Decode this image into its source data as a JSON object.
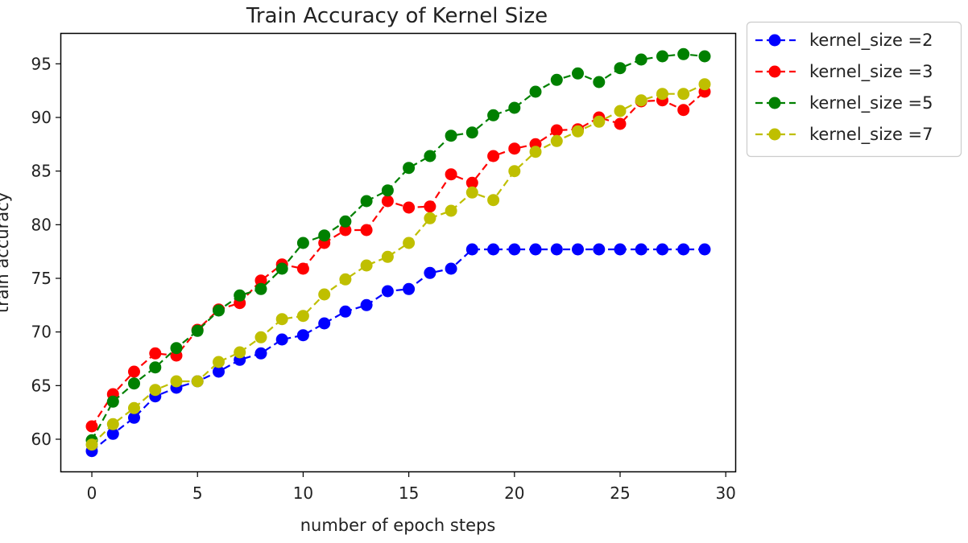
{
  "chart_data": {
    "type": "line",
    "title": "Train Accuracy of Kernel Size",
    "xlabel": "number of epoch steps",
    "ylabel": "train accuracy",
    "xlim": [
      -1.45,
      30.45
    ],
    "ylim": [
      57.0,
      97.8
    ],
    "xticks": [
      0,
      5,
      10,
      15,
      20,
      25,
      30
    ],
    "yticks": [
      60,
      65,
      70,
      75,
      80,
      85,
      90,
      95
    ],
    "grid": false,
    "legend_position": "outside-top-right",
    "x": [
      0,
      1,
      2,
      3,
      4,
      5,
      6,
      7,
      8,
      9,
      10,
      11,
      12,
      13,
      14,
      15,
      16,
      17,
      18,
      19,
      20,
      21,
      22,
      23,
      24,
      25,
      26,
      27,
      28,
      29
    ],
    "series": [
      {
        "name": "kernel_size =2",
        "color": "#0000ff",
        "values": [
          58.9,
          60.5,
          62.0,
          64.0,
          64.8,
          65.4,
          66.3,
          67.4,
          68.0,
          69.3,
          69.7,
          70.8,
          71.9,
          72.5,
          73.8,
          74.0,
          75.5,
          75.9,
          77.7,
          77.7,
          77.7,
          77.7,
          77.7,
          77.7,
          77.7,
          77.7,
          77.7,
          77.7,
          77.7,
          77.7
        ]
      },
      {
        "name": "kernel_size =3",
        "color": "#ff0000",
        "values": [
          61.2,
          64.2,
          66.3,
          68.0,
          67.8,
          70.2,
          72.1,
          72.7,
          74.8,
          76.3,
          75.9,
          78.3,
          79.5,
          79.5,
          82.2,
          81.6,
          81.7,
          84.7,
          83.9,
          86.4,
          87.1,
          87.5,
          88.8,
          88.9,
          90.0,
          89.4,
          91.5,
          91.6,
          90.7,
          92.4
        ]
      },
      {
        "name": "kernel_size =5",
        "color": "#008000",
        "values": [
          59.9,
          63.5,
          65.2,
          66.7,
          68.5,
          70.1,
          72.0,
          73.4,
          74.0,
          75.9,
          78.3,
          79.0,
          80.3,
          82.2,
          83.2,
          85.3,
          86.4,
          88.3,
          88.6,
          90.2,
          90.9,
          92.4,
          93.5,
          94.1,
          93.3,
          94.6,
          95.4,
          95.7,
          95.9,
          95.7
        ]
      },
      {
        "name": "kernel_size =7",
        "color": "#bfbf00",
        "values": [
          59.5,
          61.4,
          62.9,
          64.6,
          65.4,
          65.4,
          67.2,
          68.1,
          69.5,
          71.2,
          71.5,
          73.5,
          74.9,
          76.2,
          77.0,
          78.3,
          80.6,
          81.3,
          83.0,
          82.3,
          85.0,
          86.8,
          87.8,
          88.7,
          89.6,
          90.6,
          91.6,
          92.2,
          92.2,
          93.1
        ]
      }
    ]
  }
}
